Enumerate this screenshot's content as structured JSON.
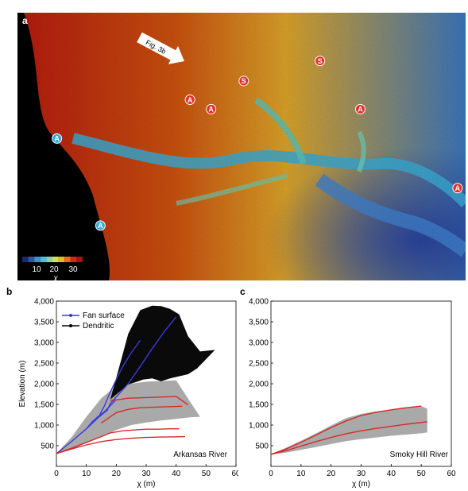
{
  "figure": {
    "panel_a": {
      "label": "a",
      "callout": "Fig. 3b",
      "markers": [
        {
          "text": "A",
          "kind": "red",
          "x": 0.385,
          "y": 0.325
        },
        {
          "text": "A",
          "kind": "red",
          "x": 0.432,
          "y": 0.36
        },
        {
          "text": "S",
          "kind": "red",
          "x": 0.505,
          "y": 0.255
        },
        {
          "text": "S",
          "kind": "red",
          "x": 0.675,
          "y": 0.18
        },
        {
          "text": "A",
          "kind": "red",
          "x": 0.765,
          "y": 0.36
        },
        {
          "text": "A",
          "kind": "red",
          "x": 0.982,
          "y": 0.655
        },
        {
          "text": "A",
          "kind": "blue",
          "x": 0.088,
          "y": 0.47
        },
        {
          "text": "A",
          "kind": "blue",
          "x": 0.185,
          "y": 0.795
        }
      ],
      "colorbar": {
        "ticks": [
          "10",
          "20",
          "30"
        ],
        "label": "χ",
        "colors": [
          "#1a237e",
          "#2a55b0",
          "#3b8fd4",
          "#4cc0d8",
          "#8fd3a0",
          "#d9dc55",
          "#f2b22d",
          "#ea6a1c",
          "#cc2a12",
          "#a51410"
        ]
      }
    },
    "panel_b": {
      "label": "b",
      "annotation": "Arkansas River",
      "legend": [
        {
          "label": "Fan surface",
          "color": "#3a3adc"
        },
        {
          "label": "Dendritic",
          "color": "#000000"
        }
      ]
    },
    "panel_c": {
      "label": "c",
      "annotation": "Smoky Hill River"
    }
  },
  "chart_data": [
    {
      "type": "line",
      "panel": "b",
      "xlabel": "χ (m)",
      "ylabel": "Elevation (m)",
      "xlim": [
        0,
        60
      ],
      "ylim": [
        0,
        4000
      ],
      "xticks": [
        0,
        10,
        20,
        30,
        40,
        50,
        60
      ],
      "yticks": [
        500,
        1000,
        1500,
        2000,
        2500,
        3000,
        3500,
        4000
      ],
      "ytick_labels": [
        "500",
        "1,000",
        "1,500",
        "2,000",
        "2,500",
        "3,000",
        "3,500",
        "4,000"
      ],
      "grey_envelope": {
        "x": [
          0,
          5,
          10,
          15,
          20,
          25,
          30,
          35,
          40,
          45,
          48,
          40,
          30,
          20,
          15,
          10,
          5,
          0
        ],
        "y": [
          310,
          420,
          560,
          720,
          880,
          1000,
          1060,
          1110,
          1150,
          1190,
          1200,
          2080,
          2050,
          1950,
          1650,
          1200,
          700,
          310
        ]
      },
      "dendritic_envelope": {
        "x": [
          18,
          21,
          24,
          27,
          29,
          32,
          35,
          38,
          41,
          44,
          47,
          53,
          48,
          44,
          41,
          38,
          35,
          32,
          28,
          24,
          21
        ],
        "y": [
          1620,
          1800,
          1980,
          2050,
          2100,
          2130,
          2060,
          2130,
          2180,
          2230,
          2370,
          2820,
          2780,
          3150,
          3680,
          3810,
          3880,
          3890,
          3780,
          3210,
          2410
        ]
      },
      "series": [
        {
          "name": "Fan surface",
          "role": "fan-1",
          "color": "#3a3adc",
          "x": [
            0,
            5,
            10,
            14,
            17,
            18,
            20,
            24,
            28,
            32,
            36,
            40
          ],
          "y": [
            310,
            600,
            910,
            1180,
            1360,
            1520,
            1680,
            2000,
            2420,
            2850,
            3260,
            3620
          ]
        },
        {
          "name": "Fan surface",
          "role": "fan-2",
          "color": "#3a3adc",
          "x": [
            14,
            16,
            18,
            20,
            22,
            25,
            28
          ],
          "y": [
            1180,
            1460,
            1800,
            2100,
            2400,
            2750,
            3050
          ]
        },
        {
          "name": "Fan surface",
          "role": "fan-3",
          "color": "#3a3adc",
          "x": [
            10,
            12,
            14,
            16,
            18,
            20
          ],
          "y": [
            910,
            1080,
            1210,
            1320,
            1470,
            1620
          ]
        },
        {
          "name": "",
          "role": "red-1",
          "color": "#d62a2a",
          "x": [
            0,
            5,
            10,
            15,
            18,
            22,
            26,
            30,
            34,
            38,
            41
          ],
          "y": [
            310,
            440,
            580,
            720,
            810,
            860,
            880,
            900,
            900,
            910,
            910
          ]
        },
        {
          "name": "",
          "role": "red-2",
          "color": "#d62a2a",
          "x": [
            0,
            5,
            10,
            15,
            20,
            25,
            30,
            35,
            40,
            43
          ],
          "y": [
            310,
            420,
            520,
            600,
            650,
            680,
            700,
            710,
            715,
            720
          ]
        },
        {
          "name": "",
          "role": "red-3",
          "color": "#d62a2a",
          "x": [
            15,
            18,
            20,
            24,
            28,
            32,
            36,
            40,
            42
          ],
          "y": [
            1050,
            1200,
            1300,
            1380,
            1420,
            1430,
            1440,
            1450,
            1455
          ]
        },
        {
          "name": "",
          "role": "red-4",
          "color": "#d62a2a",
          "x": [
            18,
            21,
            24,
            28,
            32,
            36,
            40,
            44
          ],
          "y": [
            1600,
            1620,
            1650,
            1660,
            1670,
            1680,
            1690,
            1490
          ]
        }
      ]
    },
    {
      "type": "line",
      "panel": "c",
      "xlabel": "χ (m)",
      "ylabel": "",
      "xlim": [
        0,
        60
      ],
      "ylim": [
        0,
        4000
      ],
      "xticks": [
        0,
        10,
        20,
        30,
        40,
        50,
        60
      ],
      "yticks": [
        500,
        1000,
        1500,
        2000,
        2500,
        3000,
        3500,
        4000
      ],
      "ytick_labels": [
        "500",
        "1,000",
        "1,500",
        "2,000",
        "2,500",
        "3,000",
        "3,500",
        "4,000"
      ],
      "grey_envelope": {
        "x": [
          0,
          5,
          10,
          15,
          20,
          25,
          30,
          35,
          40,
          45,
          50,
          52,
          52,
          50,
          45,
          40,
          35,
          30,
          25,
          20,
          15,
          10,
          5,
          0
        ],
        "y": [
          290,
          330,
          400,
          470,
          540,
          610,
          660,
          700,
          740,
          770,
          800,
          820,
          1400,
          1460,
          1420,
          1370,
          1330,
          1270,
          1170,
          990,
          800,
          620,
          450,
          290
        ]
      },
      "series": [
        {
          "name": "",
          "role": "red-1",
          "color": "#d62a2a",
          "x": [
            0,
            5,
            10,
            15,
            20,
            25,
            30,
            35,
            40,
            45,
            50
          ],
          "y": [
            290,
            420,
            580,
            760,
            940,
            1100,
            1230,
            1310,
            1370,
            1420,
            1460
          ]
        },
        {
          "name": "",
          "role": "red-2",
          "color": "#d62a2a",
          "x": [
            0,
            5,
            10,
            15,
            20,
            25,
            30,
            35,
            40,
            45,
            52
          ],
          "y": [
            290,
            380,
            490,
            600,
            700,
            790,
            860,
            920,
            970,
            1020,
            1080
          ]
        }
      ]
    }
  ]
}
